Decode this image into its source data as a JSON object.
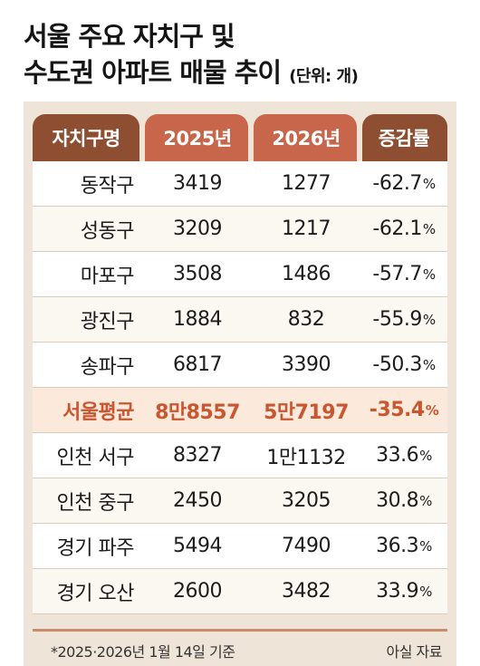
{
  "title": {
    "line1": "서울 주요 자치구 및",
    "line2": "수도권 아파트 매물 추이",
    "unit": "(단위: 개)"
  },
  "table": {
    "headers": [
      "자치구명",
      "2025년",
      "2026년",
      "증감률"
    ],
    "rows": [
      {
        "district": "동작구",
        "y2025": "3419",
        "y2026": "1277",
        "change": "-62.7",
        "unit": "%"
      },
      {
        "district": "성동구",
        "y2025": "3209",
        "y2026": "1217",
        "change": "-62.1",
        "unit": "%"
      },
      {
        "district": "마포구",
        "y2025": "3508",
        "y2026": "1486",
        "change": "-57.7",
        "unit": "%"
      },
      {
        "district": "광진구",
        "y2025": "1884",
        "y2026": "832",
        "change": "-55.9",
        "unit": "%"
      },
      {
        "district": "송파구",
        "y2025": "6817",
        "y2026": "3390",
        "change": "-50.3",
        "unit": "%"
      },
      {
        "district": "서울평균",
        "y2025": "8만8557",
        "y2026": "5만7197",
        "change": "-35.4",
        "unit": "%"
      },
      {
        "district": "인천 서구",
        "y2025": "8327",
        "y2026": "1만1132",
        "change": "33.6",
        "unit": "%"
      },
      {
        "district": "인천 중구",
        "y2025": "2450",
        "y2026": "3205",
        "change": "30.8",
        "unit": "%"
      },
      {
        "district": "경기 파주",
        "y2025": "5494",
        "y2026": "7490",
        "change": "36.3",
        "unit": "%"
      },
      {
        "district": "경기 오산",
        "y2025": "2600",
        "y2026": "3482",
        "change": "33.9",
        "unit": "%"
      }
    ]
  },
  "footnote": "*2025·2026년 1월 14일 기준",
  "source": "아실 자료",
  "colors": {
    "header_dark": "#8e4e32",
    "header_light": "#c7664a",
    "average_text": "#c8562f",
    "average_row": "#fbe9dc",
    "panel": "#eee5d8"
  }
}
